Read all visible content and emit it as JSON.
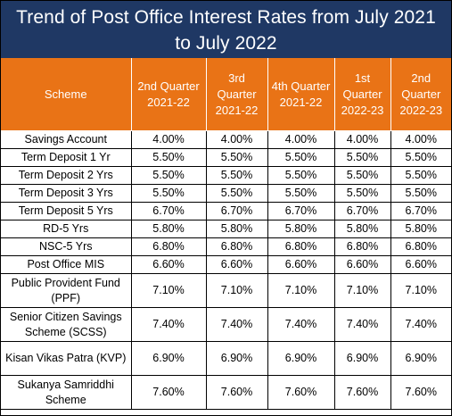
{
  "title": "Trend of Post Office Interest Rates from July 2021 to July 2022",
  "colors": {
    "title_bg": "#1f3864",
    "header_bg": "#e97316",
    "header_text": "#ffffff"
  },
  "headers": [
    "Scheme",
    "2nd Quarter 2021-22",
    "3rd Quarter 2021-22",
    "4th Quarter 2021-22",
    "1st Quarter 2022-23",
    "2nd Quarter 2022-23"
  ],
  "rows": [
    [
      "Savings Account",
      "4.00%",
      "4.00%",
      "4.00%",
      "4.00%",
      "4.00%"
    ],
    [
      "Term Deposit 1 Yr",
      "5.50%",
      "5.50%",
      "5.50%",
      "5.50%",
      "5.50%"
    ],
    [
      "Term Deposit 2 Yrs",
      "5.50%",
      "5.50%",
      "5.50%",
      "5.50%",
      "5.50%"
    ],
    [
      "Term Deposit 3 Yrs",
      "5.50%",
      "5.50%",
      "5.50%",
      "5.50%",
      "5.50%"
    ],
    [
      "Term Deposit 5 Yrs",
      "6.70%",
      "6.70%",
      "6.70%",
      "6.70%",
      "6.70%"
    ],
    [
      "RD-5 Yrs",
      "5.80%",
      "5.80%",
      "5.80%",
      "5.80%",
      "5.80%"
    ],
    [
      "NSC-5 Yrs",
      "6.80%",
      "6.80%",
      "6.80%",
      "6.80%",
      "6.80%"
    ],
    [
      "Post Office MIS",
      "6.60%",
      "6.60%",
      "6.60%",
      "6.60%",
      "6.60%"
    ],
    [
      "Public Provident Fund (PPF)",
      "7.10%",
      "7.10%",
      "7.10%",
      "7.10%",
      "7.10%"
    ],
    [
      "Senior Citizen Savings Scheme (SCSS)",
      "7.40%",
      "7.40%",
      "7.40%",
      "7.40%",
      "7.40%"
    ],
    [
      "Kisan Vikas Patra (KVP)",
      "6.90%",
      "6.90%",
      "6.90%",
      "6.90%",
      "6.90%"
    ],
    [
      "Sukanya Samriddhi Scheme",
      "7.60%",
      "7.60%",
      "7.60%",
      "7.60%",
      "7.60%"
    ]
  ]
}
